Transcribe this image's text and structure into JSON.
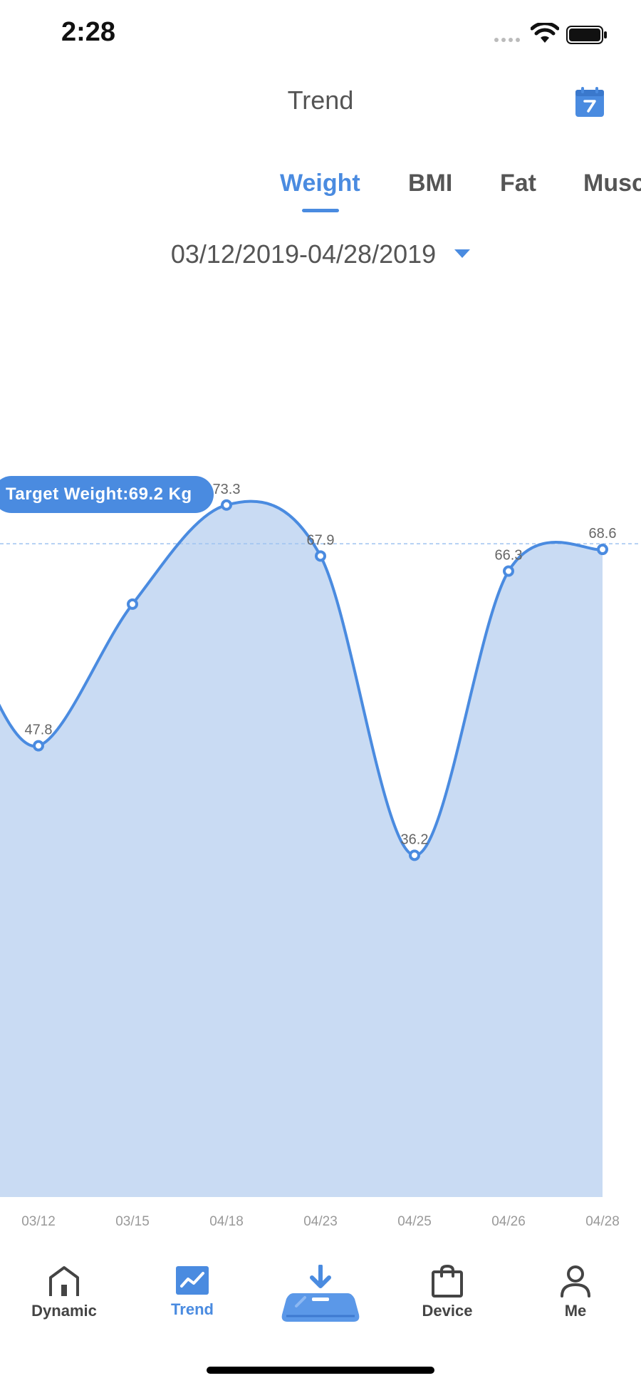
{
  "status": {
    "time": "2:28"
  },
  "header": {
    "title": "Trend"
  },
  "tabs": [
    {
      "label": "Weight",
      "active": true
    },
    {
      "label": "BMI",
      "active": false
    },
    {
      "label": "Fat",
      "active": false
    },
    {
      "label": "Musc",
      "active": false
    }
  ],
  "date_range": "03/12/2019-04/28/2019",
  "target": {
    "label": "Target Weight:69.2  Kg",
    "value": 69.2
  },
  "chart_data": {
    "type": "area",
    "title": "Weight",
    "categories": [
      "03/12",
      "03/15",
      "04/18",
      "04/23",
      "04/25",
      "04/26",
      "04/28"
    ],
    "values": [
      47.8,
      null,
      73.3,
      67.9,
      36.2,
      66.3,
      68.6
    ],
    "value_labels": [
      "47.8",
      "",
      "73.3",
      "67.9",
      "36.2",
      "66.3",
      "68.6"
    ],
    "ylim": [
      0,
      80
    ],
    "target_line": 69.2,
    "colors": {
      "line": "#4A8BE0",
      "fill": "#C9DBF3",
      "target": "#9FC3F0",
      "label": "#666666",
      "tick": "#999999"
    }
  },
  "nav": {
    "items": [
      {
        "label": "Dynamic",
        "active": false
      },
      {
        "label": "Trend",
        "active": true
      },
      {
        "label": "",
        "active": false
      },
      {
        "label": "Device",
        "active": false
      },
      {
        "label": "Me",
        "active": false
      }
    ]
  }
}
